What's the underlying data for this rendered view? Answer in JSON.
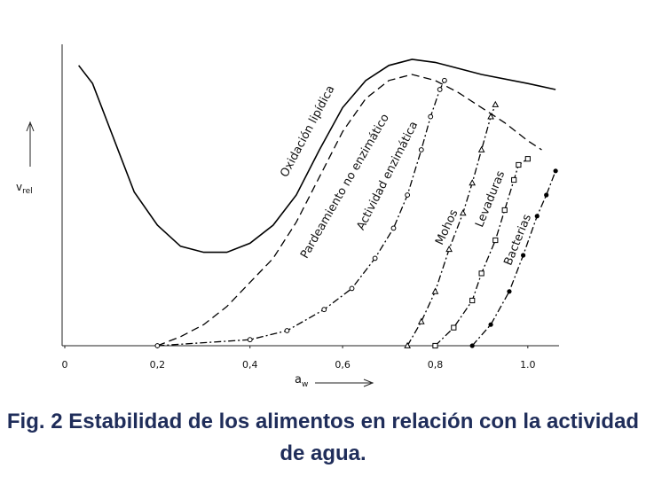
{
  "chart_data": {
    "type": "line",
    "title": "Fig. 2 Estabilidad de los alimentos en relación con la actividad de agua.",
    "x_label": {
      "main": "a",
      "sub": "w"
    },
    "y_label": {
      "main": "v",
      "sub": "rel"
    },
    "xlim": [
      0,
      1.1
    ],
    "ylim": [
      0,
      1
    ],
    "xticks": [
      0,
      {
        "value": 0.2,
        "label": "0,2"
      },
      {
        "value": 0.4,
        "label": "0,4"
      },
      {
        "value": 0.6,
        "label": "0,6"
      },
      {
        "value": 0.8,
        "label": "0,8"
      },
      {
        "value": 1,
        "label": "1.0"
      }
    ],
    "grid": false,
    "series": [
      {
        "name": "Oxidación lipídica",
        "color": "#000000",
        "dash": "solid",
        "marker": "none",
        "x": [
          0.03,
          0.06,
          0.1,
          0.15,
          0.2,
          0.25,
          0.3,
          0.35,
          0.4,
          0.45,
          0.5,
          0.55,
          0.6,
          0.65,
          0.7,
          0.75,
          0.8,
          0.9,
          1.0,
          1.06
        ],
        "values": [
          0.93,
          0.87,
          0.71,
          0.51,
          0.4,
          0.33,
          0.31,
          0.31,
          0.34,
          0.4,
          0.5,
          0.65,
          0.79,
          0.88,
          0.93,
          0.95,
          0.94,
          0.9,
          0.87,
          0.85
        ]
      },
      {
        "name": "Pardeamiento no enzimático",
        "color": "#000000",
        "dash": "dashed",
        "marker": "none",
        "x": [
          0.2,
          0.25,
          0.3,
          0.35,
          0.4,
          0.45,
          0.5,
          0.55,
          0.6,
          0.65,
          0.7,
          0.75,
          0.8,
          0.85,
          0.9,
          0.95,
          1.0,
          1.03
        ],
        "values": [
          0,
          0.03,
          0.07,
          0.13,
          0.21,
          0.29,
          0.41,
          0.56,
          0.71,
          0.82,
          0.88,
          0.9,
          0.88,
          0.84,
          0.79,
          0.74,
          0.68,
          0.65
        ]
      },
      {
        "name": "Actividad enzimática",
        "color": "#000000",
        "dash": "dashdot",
        "marker": "circle",
        "x": [
          0.2,
          0.4,
          0.48,
          0.56,
          0.62,
          0.67,
          0.71,
          0.74,
          0.77,
          0.79,
          0.81,
          0.82
        ],
        "values": [
          0,
          0.02,
          0.05,
          0.12,
          0.19,
          0.29,
          0.39,
          0.5,
          0.65,
          0.76,
          0.85,
          0.88
        ]
      },
      {
        "name": "Mohos",
        "color": "#000000",
        "dash": "dashdot",
        "marker": "triangle",
        "x": [
          0.74,
          0.77,
          0.8,
          0.83,
          0.86,
          0.88,
          0.9,
          0.92,
          0.93
        ],
        "values": [
          0,
          0.08,
          0.18,
          0.32,
          0.44,
          0.54,
          0.65,
          0.76,
          0.8
        ]
      },
      {
        "name": "Levaduras",
        "color": "#000000",
        "dash": "dashdot",
        "marker": "square",
        "x": [
          0.8,
          0.84,
          0.88,
          0.9,
          0.93,
          0.95,
          0.97,
          0.98,
          1.0
        ],
        "values": [
          0,
          0.06,
          0.15,
          0.24,
          0.35,
          0.45,
          0.55,
          0.6,
          0.62
        ]
      },
      {
        "name": "Bacterias",
        "color": "#000000",
        "dash": "dashdot",
        "marker": "dot",
        "x": [
          0.88,
          0.92,
          0.96,
          0.99,
          1.02,
          1.04,
          1.06
        ],
        "values": [
          0,
          0.07,
          0.18,
          0.3,
          0.43,
          0.5,
          0.58
        ]
      }
    ]
  }
}
